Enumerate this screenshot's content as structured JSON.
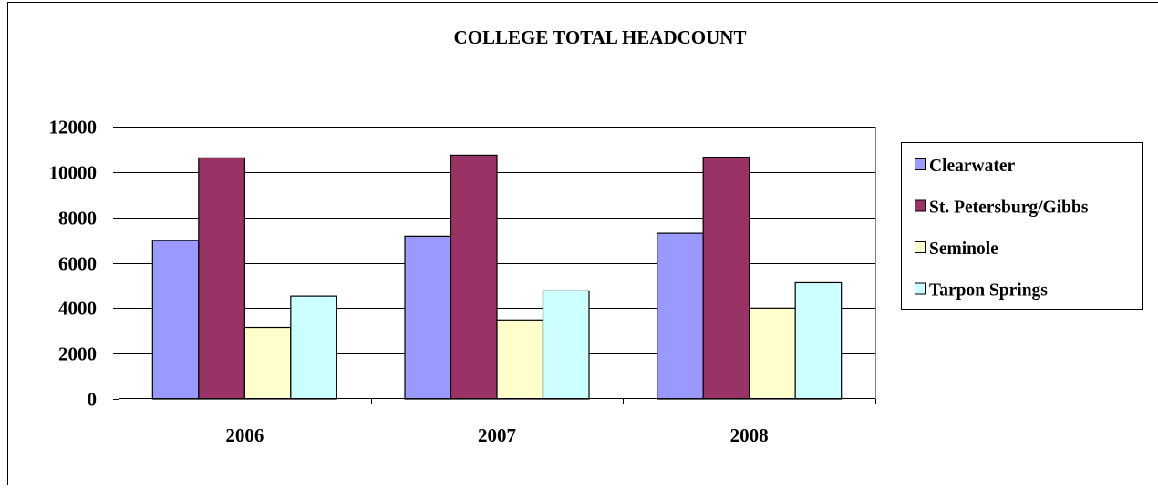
{
  "chart_data": {
    "type": "bar",
    "title": "COLLEGE TOTAL HEADCOUNT",
    "categories": [
      "2006",
      "2007",
      "2008"
    ],
    "series": [
      {
        "name": "Clearwater",
        "color": "#9999ff",
        "values": [
          6980,
          7170,
          7300
        ]
      },
      {
        "name": "St. Petersburg/Gibbs",
        "color": "#993366",
        "values": [
          10620,
          10740,
          10650
        ]
      },
      {
        "name": "Seminole",
        "color": "#ffffcc",
        "values": [
          3150,
          3480,
          4000
        ]
      },
      {
        "name": "Tarpon Springs",
        "color": "#ccffff",
        "values": [
          4530,
          4760,
          5120
        ]
      }
    ],
    "ylim": [
      0,
      12000
    ],
    "yticks": [
      "0",
      "2000",
      "4000",
      "6000",
      "8000",
      "10000",
      "12000"
    ],
    "grid": true,
    "legend_position": "right"
  }
}
